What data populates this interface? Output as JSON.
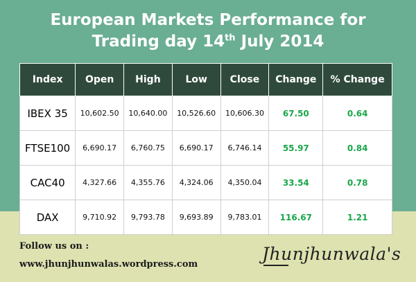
{
  "title_line1": "European Markets Performance for",
  "title_line2_pre": "Trading day 14",
  "title_line2_sup": "th",
  "title_line2_post": " July 2014",
  "table": {
    "headers": [
      "Index",
      "Open",
      "High",
      "Low",
      "Close",
      "Change",
      "% Change"
    ],
    "rows": [
      {
        "index": "IBEX 35",
        "open": "10,602.50",
        "high": "10,640.00",
        "low": "10,526.60",
        "close": "10,606.30",
        "change": "67.50",
        "pct_change": "0.64"
      },
      {
        "index": "FTSE100",
        "open": "6,690.17",
        "high": "6,760.75",
        "low": "6,690.17",
        "close": "6,746.14",
        "change": "55.97",
        "pct_change": "0.84"
      },
      {
        "index": "CAC40",
        "open": "4,327.66",
        "high": "4,355.76",
        "low": "4,324.06",
        "close": "4,350.04",
        "change": "33.54",
        "pct_change": "0.78"
      },
      {
        "index": "DAX",
        "open": "9,710.92",
        "high": "9,793.78",
        "low": "9,693.89",
        "close": "9,783.01",
        "change": "116.67",
        "pct_change": "1.21"
      }
    ]
  },
  "footer": {
    "follow": "Follow us on :",
    "website": "www.jhunjhunwalas.wordpress.com",
    "brand": "Jhunjhunwala's"
  },
  "colors": {
    "background_green": "#6aae93",
    "bottom_band": "#dde2b0",
    "header_bg": "#2f4a3d",
    "positive_green": "#1aa64a"
  }
}
